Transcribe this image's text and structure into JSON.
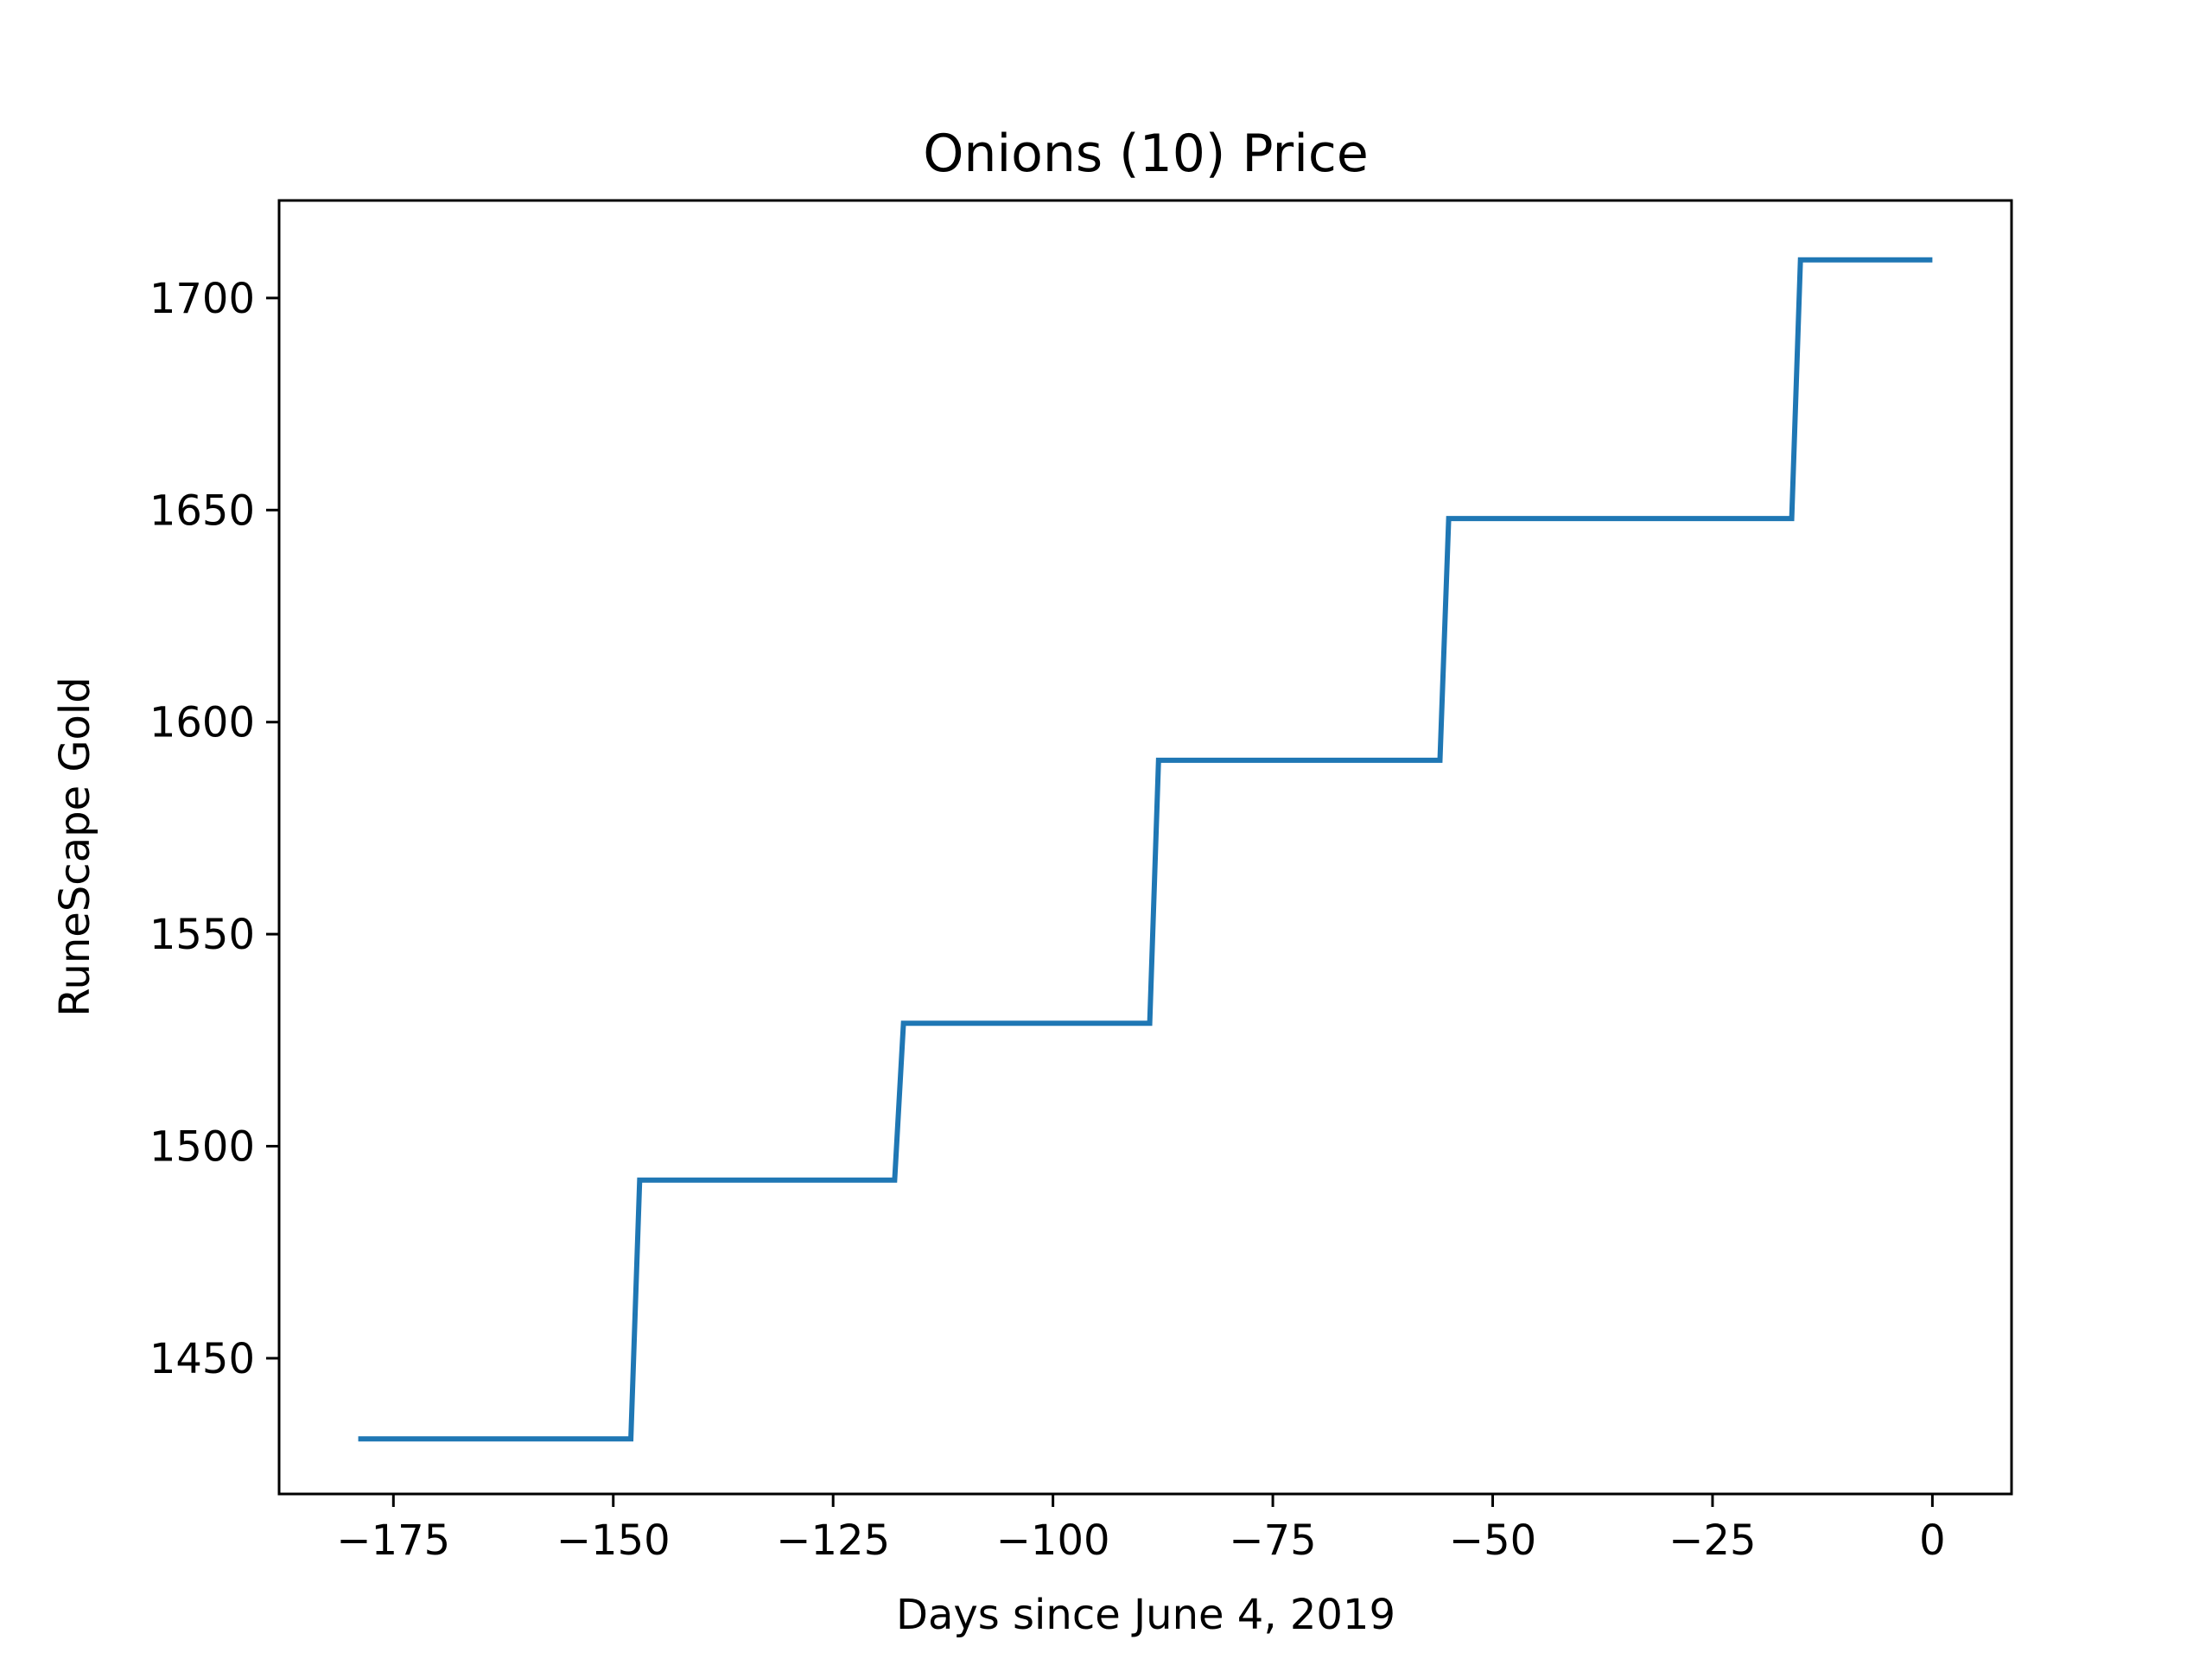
{
  "chart_data": {
    "type": "line",
    "title": "Onions (10) Price",
    "xlabel": "Days since June 4, 2019",
    "ylabel": "RuneScape Gold",
    "xlim": [
      -188,
      9
    ],
    "ylim": [
      1418,
      1723
    ],
    "xticks": [
      -175,
      -150,
      -125,
      -100,
      -75,
      -50,
      -25,
      0
    ],
    "xtick_labels": [
      "−175",
      "−150",
      "−125",
      "−100",
      "−75",
      "−50",
      "−25",
      "0"
    ],
    "yticks": [
      1450,
      1500,
      1550,
      1600,
      1650,
      1700
    ],
    "ytick_labels": [
      "1450",
      "1500",
      "1550",
      "1600",
      "1650",
      "1700"
    ],
    "grid": false,
    "line_color": "#1f77b4",
    "series": [
      {
        "x": [
          -179,
          -148,
          -147,
          -118,
          -117,
          -89,
          -88,
          -56,
          -55,
          -16,
          -15,
          0
        ],
        "y": [
          1431,
          1431,
          1492,
          1492,
          1529,
          1529,
          1591,
          1591,
          1648,
          1648,
          1709,
          1709
        ]
      }
    ]
  }
}
